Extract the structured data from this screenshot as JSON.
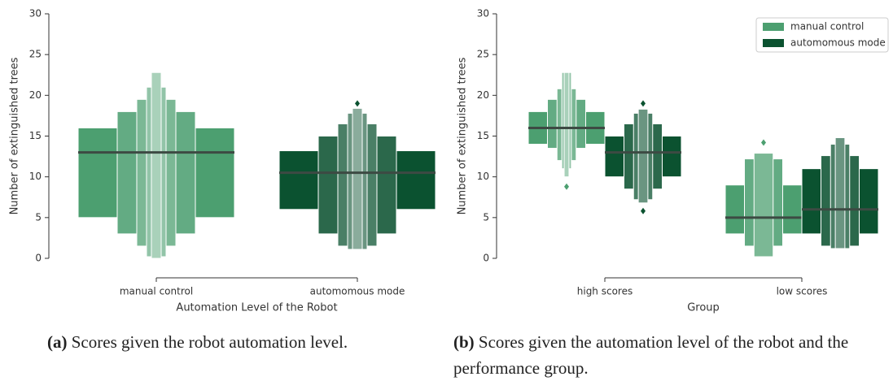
{
  "chart_data": [
    {
      "type": "boxen",
      "xlabel": "Automation Level of the Robot",
      "ylabel": "Number of extinguished trees",
      "categories": [
        "manual control",
        "automomous mode"
      ],
      "colors": [
        "#4c9f70",
        "#0b5230"
      ],
      "values": [
        {
          "median": 13,
          "levels": [
            [
              5,
              16
            ],
            [
              3,
              18
            ],
            [
              1.5,
              19.5
            ],
            [
              0.2,
              21
            ],
            [
              0,
              22.8
            ]
          ],
          "outliers": []
        },
        {
          "median": 10.5,
          "levels": [
            [
              6,
              13.2
            ],
            [
              3,
              15
            ],
            [
              1.5,
              16.5
            ],
            [
              1.1,
              17.8
            ],
            [
              1.1,
              18.4
            ]
          ],
          "outliers": [
            19
          ]
        }
      ],
      "ylim": [
        0,
        30
      ],
      "yticks": [
        0,
        5,
        10,
        15,
        20,
        25,
        30
      ]
    },
    {
      "type": "boxen",
      "xlabel": "Group",
      "ylabel": "Number of extinguished trees",
      "categories": [
        "high scores",
        "low scores"
      ],
      "legend": "upper right",
      "series": [
        {
          "name": "manual control",
          "color": "#4c9f70",
          "values": [
            {
              "median": 16,
              "levels": [
                [
                  14,
                  18
                ],
                [
                  13.5,
                  19.5
                ],
                [
                  12,
                  20.8
                ],
                [
                  11,
                  22.8
                ],
                [
                  10,
                  22.8
                ]
              ],
              "outliers": [
                8.8
              ]
            },
            {
              "median": 5,
              "levels": [
                [
                  3,
                  9
                ],
                [
                  1.5,
                  12.2
                ],
                [
                  0.2,
                  12.9
                ]
              ],
              "outliers": [
                14.2
              ]
            }
          ]
        },
        {
          "name": "automomous mode",
          "color": "#0b5230",
          "values": [
            {
              "median": 13,
              "levels": [
                [
                  10,
                  15
                ],
                [
                  8.5,
                  16.5
                ],
                [
                  7.2,
                  17.8
                ],
                [
                  6.8,
                  18.3
                ]
              ],
              "outliers": [
                5.8,
                19
              ]
            },
            {
              "median": 6,
              "levels": [
                [
                  3,
                  11
                ],
                [
                  1.5,
                  12.6
                ],
                [
                  1.2,
                  14
                ],
                [
                  1.2,
                  14.8
                ]
              ],
              "outliers": []
            }
          ]
        }
      ],
      "ylim": [
        0,
        30
      ],
      "yticks": [
        0,
        5,
        10,
        15,
        20,
        25,
        30
      ]
    }
  ],
  "captions": [
    {
      "label": "(a)",
      "text": "Scores given the robot automation level."
    },
    {
      "label": "(b)",
      "text": "Scores given the automation level of the robot and the performance group."
    }
  ]
}
